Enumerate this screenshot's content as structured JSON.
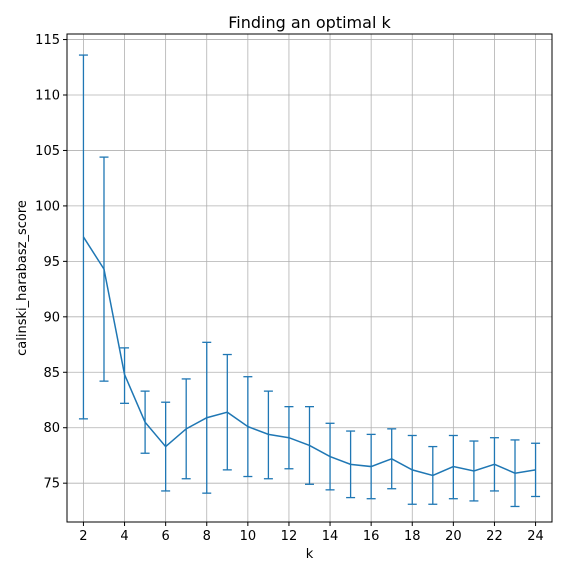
{
  "chart_data": {
    "type": "line",
    "title": "Finding an optimal k",
    "xlabel": "k",
    "ylabel": "calinski_harabasz_score",
    "xlim": [
      1.2,
      24.8
    ],
    "ylim": [
      71.5,
      115.5
    ],
    "xticks": [
      2,
      4,
      6,
      8,
      10,
      12,
      14,
      16,
      18,
      20,
      22,
      24
    ],
    "yticks": [
      75,
      80,
      85,
      90,
      95,
      100,
      105,
      110,
      115
    ],
    "grid": true,
    "color": "#1f77b4",
    "series": [
      {
        "x": [
          2,
          3,
          4,
          5,
          6,
          7,
          8,
          9,
          10,
          11,
          12,
          13,
          14,
          15,
          16,
          17,
          18,
          19,
          20,
          21,
          22,
          23,
          24
        ],
        "y": [
          97.2,
          94.3,
          84.8,
          80.5,
          78.3,
          79.9,
          80.9,
          81.4,
          80.1,
          79.4,
          79.1,
          78.4,
          77.4,
          76.7,
          76.5,
          77.2,
          76.2,
          75.7,
          76.5,
          76.1,
          76.7,
          75.9,
          76.2
        ],
        "yerr_low": [
          80.8,
          84.2,
          82.2,
          77.7,
          74.3,
          75.4,
          74.1,
          76.2,
          75.6,
          75.4,
          76.3,
          74.9,
          74.4,
          73.7,
          73.6,
          74.5,
          73.1,
          73.1,
          73.6,
          73.4,
          74.3,
          72.9,
          73.8
        ],
        "yerr_high": [
          113.6,
          104.4,
          87.2,
          83.3,
          82.3,
          84.4,
          87.7,
          86.6,
          84.6,
          83.3,
          81.9,
          81.9,
          80.4,
          79.7,
          79.4,
          79.9,
          79.3,
          78.3,
          79.3,
          78.8,
          79.1,
          78.9,
          78.6
        ]
      }
    ]
  }
}
